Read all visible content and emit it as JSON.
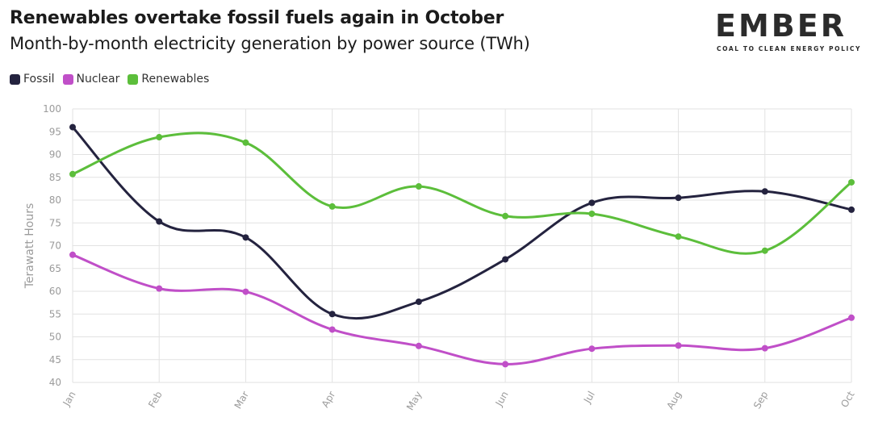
{
  "header": {
    "title": "Renewables overtake fossil fuels again in October",
    "subtitle": "Month-by-month electricity generation by power source (TWh)"
  },
  "logo": {
    "word": "EMBER",
    "tagline": "COAL TO CLEAN ENERGY POLICY",
    "accent_color": "#4fbf3a"
  },
  "chart_data": {
    "type": "line",
    "title": "Renewables overtake fossil fuels again in October",
    "subtitle": "Month-by-month electricity generation by power source (TWh)",
    "xlabel": "",
    "ylabel": "Terawatt Hours",
    "categories": [
      "Jan",
      "Feb",
      "Mar",
      "Apr",
      "May",
      "Jun",
      "Jul",
      "Aug",
      "Sep",
      "Oct"
    ],
    "ylim": [
      40,
      100
    ],
    "yticks": [
      40,
      45,
      50,
      55,
      60,
      65,
      70,
      75,
      80,
      85,
      90,
      95,
      100
    ],
    "grid": true,
    "legend_position": "top-left",
    "series": [
      {
        "name": "Fossil",
        "color": "#24233f",
        "values": [
          96.0,
          75.3,
          71.8,
          55.0,
          57.7,
          67.0,
          79.4,
          80.5,
          81.9,
          77.9
        ]
      },
      {
        "name": "Nuclear",
        "color": "#c04fc8",
        "values": [
          68.0,
          60.6,
          59.9,
          51.6,
          48.0,
          44.0,
          47.4,
          48.1,
          47.5,
          54.2
        ]
      },
      {
        "name": "Renewables",
        "color": "#5cbe3b",
        "values": [
          85.7,
          93.8,
          92.6,
          78.6,
          83.0,
          76.5,
          77.0,
          72.0,
          68.9,
          83.9
        ]
      }
    ]
  }
}
